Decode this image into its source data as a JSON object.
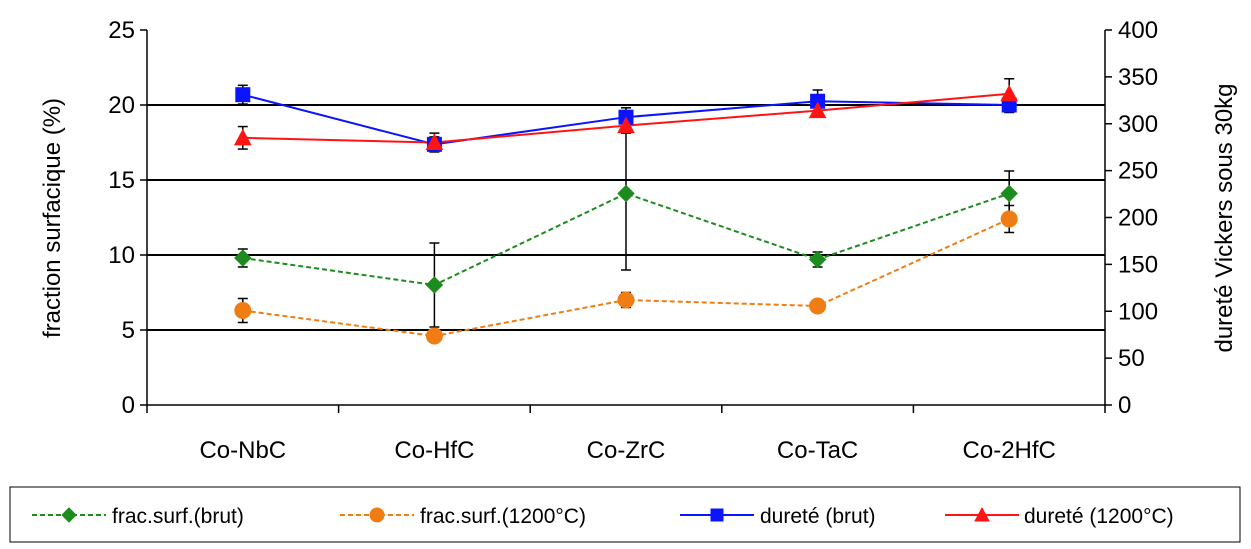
{
  "chart_data": {
    "type": "line",
    "categories": [
      "Co-NbC",
      "Co-HfC",
      "Co-ZrC",
      "Co-TaC",
      "Co-2HfC"
    ],
    "y_left": {
      "label": "fraction surfacique (%)",
      "lim": [
        0,
        25
      ],
      "ticks": [
        "0",
        "5",
        "10",
        "15",
        "20",
        "25"
      ]
    },
    "y_right": {
      "label": "dureté Vickers sous 30kg",
      "lim": [
        0,
        400
      ],
      "ticks": [
        "0",
        "50",
        "100",
        "150",
        "200",
        "250",
        "300",
        "350",
        "400"
      ]
    },
    "gridlines": [
      5,
      10,
      15,
      20
    ],
    "legend_position": "bottom",
    "series": [
      {
        "name": "frac.surf.(brut)",
        "axis": "left",
        "color": "#1e8b1e",
        "dashed": true,
        "marker": "diamond",
        "values": [
          9.8,
          8.0,
          14.1,
          9.7,
          14.1
        ],
        "err": [
          0.6,
          2.8,
          5.1,
          0.5,
          1.5
        ]
      },
      {
        "name": "frac.surf.(1200°C)",
        "axis": "left",
        "color": "#f07d14",
        "dashed": true,
        "marker": "circle",
        "values": [
          6.3,
          4.6,
          7.0,
          6.6,
          12.4
        ],
        "err": [
          0.8,
          0.3,
          0.5,
          0.0,
          0.9
        ]
      },
      {
        "name": "dureté (brut)",
        "axis": "right",
        "color": "#0a14ff",
        "dashed": false,
        "marker": "square",
        "values": [
          331,
          278,
          307,
          324,
          320
        ],
        "err": [
          10,
          8,
          10,
          12,
          8
        ]
      },
      {
        "name": "dureté (1200°C)",
        "axis": "right",
        "color": "#ff1414",
        "dashed": false,
        "marker": "triangle",
        "values": [
          285,
          280,
          298,
          314,
          332
        ],
        "err": [
          12,
          10,
          8,
          0,
          16
        ]
      }
    ]
  }
}
